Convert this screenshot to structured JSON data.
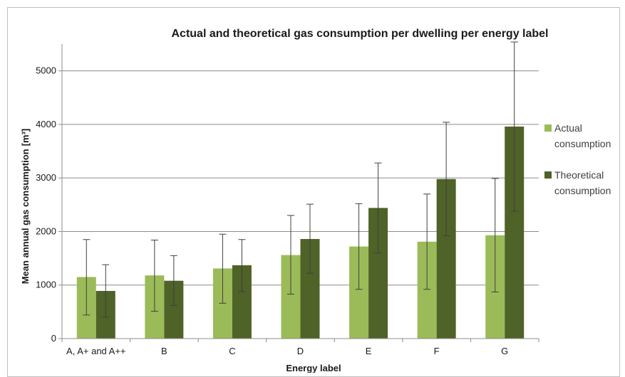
{
  "chart_data": {
    "type": "bar",
    "title": "Actual and theoretical gas consumption per dwelling per energy label",
    "xlabel": "Energy label",
    "ylabel": "Mean annual gas consumption",
    "ylabel_unit": "[m³]",
    "ylim": [
      0,
      5500
    ],
    "yticks": [
      0,
      1000,
      2000,
      3000,
      4000,
      5000
    ],
    "grid": true,
    "legend_position": "right",
    "categories": [
      "A, A+ and A++",
      "B",
      "C",
      "D",
      "E",
      "F",
      "G"
    ],
    "series": [
      {
        "name": "Actual consumption",
        "legend_lines": [
          "Actual",
          "consumption"
        ],
        "color": "#9bbb59",
        "values": [
          1150,
          1180,
          1310,
          1560,
          1720,
          1810,
          1930
        ],
        "error_low": [
          440,
          510,
          660,
          830,
          920,
          920,
          870
        ],
        "error_high": [
          1850,
          1840,
          1950,
          2300,
          2520,
          2700,
          2990
        ]
      },
      {
        "name": "Theoretical consumption",
        "legend_lines": [
          "Theoretical",
          "consumption"
        ],
        "color": "#4f6228",
        "values": [
          890,
          1080,
          1370,
          1860,
          2440,
          2980,
          3960
        ],
        "error_low": [
          400,
          620,
          880,
          1220,
          1600,
          1920,
          2380
        ],
        "error_high": [
          1380,
          1550,
          1850,
          2510,
          3280,
          4040,
          5540
        ]
      }
    ]
  }
}
